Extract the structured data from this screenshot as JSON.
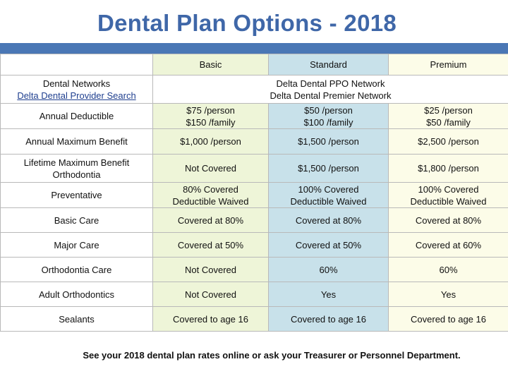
{
  "title": "Dental Plan Options - 2018",
  "colors": {
    "title": "#3F67A8",
    "band": "#4A77B5",
    "basic_col": "#EEF5D8",
    "standard_col": "#C8E1EA",
    "premium_col": "#FCFCE8"
  },
  "columns": {
    "basic": "Basic",
    "standard": "Standard",
    "premium": "Premium"
  },
  "networks": {
    "label": "Dental Networks",
    "link": "Delta Dental Provider Search",
    "value_line1": "Delta Dental PPO Network",
    "value_line2": "Delta Dental Premier Network"
  },
  "rows": [
    {
      "label": [
        "Annual Deductible"
      ],
      "basic": [
        "$75 /person",
        "$150 /family"
      ],
      "standard": [
        "$50 /person",
        "$100 /family"
      ],
      "premium": [
        "$25 /person",
        "$50 /family"
      ]
    },
    {
      "label": [
        "Annual Maximum Benefit"
      ],
      "basic": [
        "$1,000 /person"
      ],
      "standard": [
        "$1,500 /person"
      ],
      "premium": [
        "$2,500 /person"
      ]
    },
    {
      "label": [
        "Lifetime Maximum Benefit",
        "Orthodontia"
      ],
      "basic": [
        "Not Covered"
      ],
      "standard": [
        "$1,500 /person"
      ],
      "premium": [
        "$1,800 /person"
      ]
    },
    {
      "label": [
        "Preventative"
      ],
      "basic": [
        "80% Covered",
        "Deductible Waived"
      ],
      "standard": [
        "100% Covered",
        "Deductible Waived"
      ],
      "premium": [
        "100% Covered",
        "Deductible Waived"
      ]
    },
    {
      "label": [
        "Basic Care"
      ],
      "basic": [
        "Covered at 80%"
      ],
      "standard": [
        "Covered at 80%"
      ],
      "premium": [
        "Covered at 80%"
      ]
    },
    {
      "label": [
        "Major Care"
      ],
      "basic": [
        "Covered at 50%"
      ],
      "standard": [
        "Covered at 50%"
      ],
      "premium": [
        "Covered at 60%"
      ]
    },
    {
      "label": [
        "Orthodontia Care"
      ],
      "basic": [
        "Not Covered"
      ],
      "standard": [
        "60%"
      ],
      "premium": [
        "60%"
      ]
    },
    {
      "label": [
        "Adult Orthodontics"
      ],
      "basic": [
        "Not Covered"
      ],
      "standard": [
        "Yes"
      ],
      "premium": [
        "Yes"
      ]
    },
    {
      "label": [
        "Sealants"
      ],
      "basic": [
        "Covered to age 16"
      ],
      "standard": [
        "Covered to age 16"
      ],
      "premium": [
        "Covered to age 16"
      ]
    }
  ],
  "footer": "See your 2018 dental plan rates online or ask your Treasurer or Personnel Department."
}
